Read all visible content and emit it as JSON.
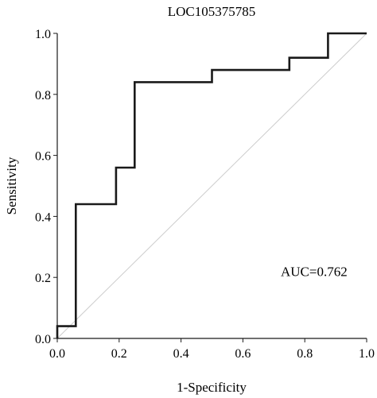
{
  "chart_data": {
    "type": "line",
    "title": "LOC105375785",
    "xlabel": "1-Specificity",
    "ylabel": "Sensitivity",
    "xlim": [
      0,
      1
    ],
    "ylim": [
      0,
      1
    ],
    "xticks": [
      "0.0",
      "0.2",
      "0.4",
      "0.6",
      "0.8",
      "1.0"
    ],
    "yticks": [
      "0.0",
      "0.2",
      "0.4",
      "0.6",
      "0.8",
      "1.0"
    ],
    "grid": false,
    "series": [
      {
        "line_style": "step",
        "color": "#1a1a1a",
        "x": [
          0,
          0,
          0.06,
          0.06,
          0.19,
          0.19,
          0.25,
          0.25,
          0.5,
          0.5,
          0.75,
          0.75,
          0.875,
          0.875,
          1.0
        ],
        "y": [
          0,
          0.04,
          0.04,
          0.44,
          0.44,
          0.56,
          0.56,
          0.84,
          0.84,
          0.88,
          0.88,
          0.92,
          0.92,
          1.0,
          1.0
        ]
      },
      {
        "line_style": "reference",
        "color": "#cccccc",
        "x": [
          0,
          1
        ],
        "y": [
          0,
          1
        ]
      }
    ],
    "annotations": [
      {
        "text": "AUC=0.762",
        "x": 0.83,
        "y": 0.22
      }
    ]
  }
}
